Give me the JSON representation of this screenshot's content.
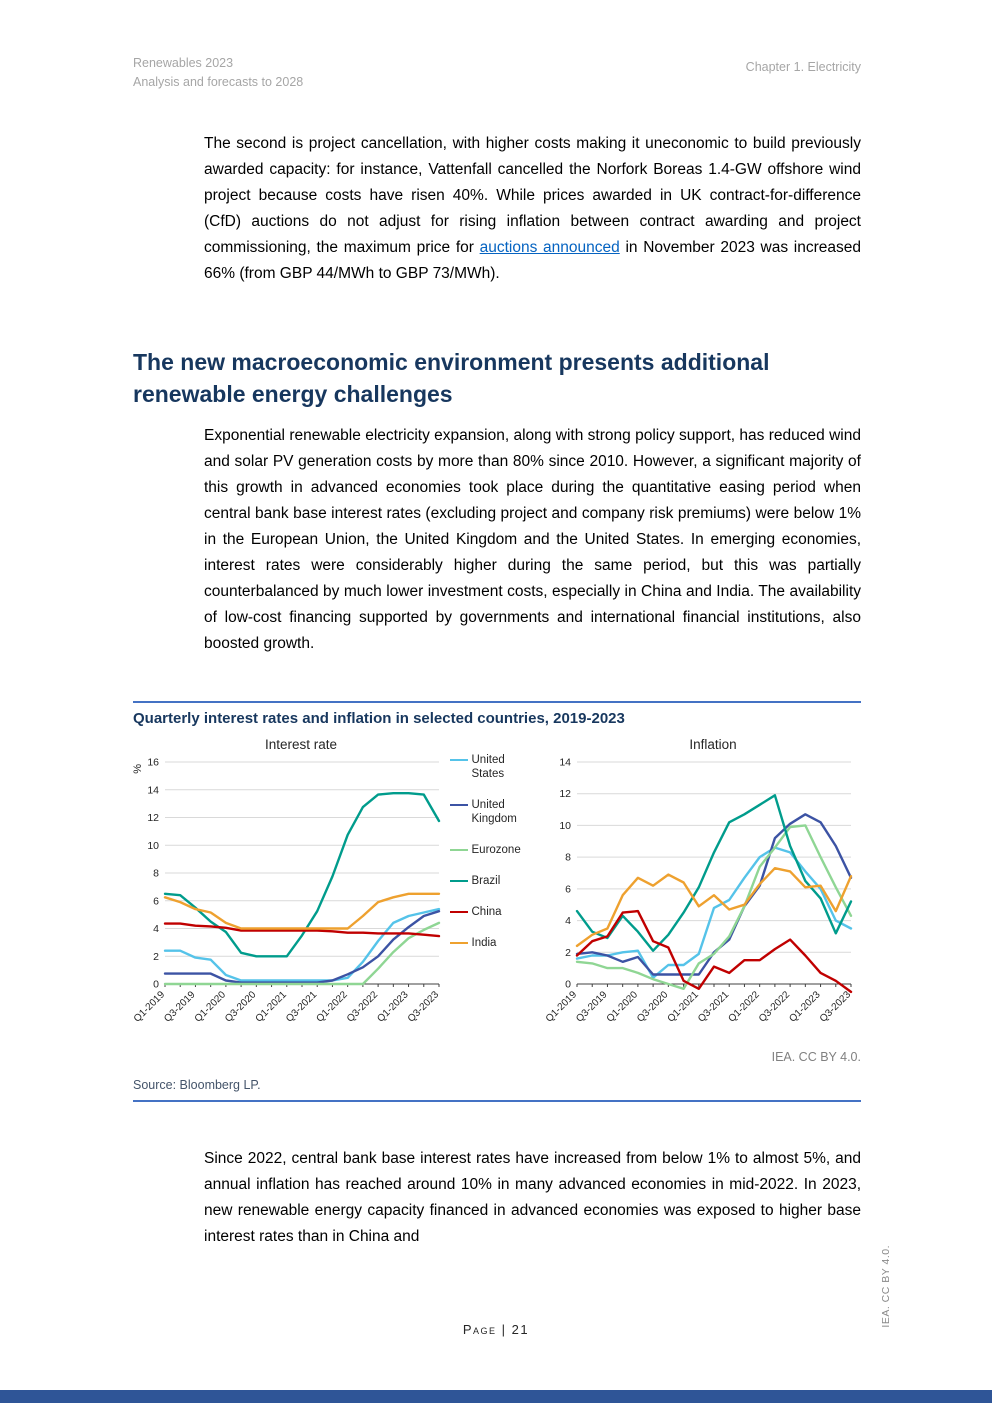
{
  "header": {
    "left_line1": "Renewables 2023",
    "left_line2": "Analysis and forecasts to 2028",
    "right": "Chapter 1. Electricity"
  },
  "heading": "The new macroeconomic environment presents additional renewable energy challenges",
  "paragraphs": {
    "p1_pre": "The second is project cancellation, with higher costs making it uneconomic to build previously awarded capacity: for instance, Vattenfall cancelled the Norfork Boreas 1.4-GW offshore wind project because costs have risen 40%. While prices awarded in UK contract-for-difference (CfD) auctions do not adjust for rising inflation between contract awarding and project commissioning, the maximum price for ",
    "p1_link": "auctions announced",
    "p1_post": " in November 2023 was increased 66% (from GBP 44/MWh to GBP 73/MWh).",
    "p2": "Exponential renewable electricity expansion, along with strong policy support, has reduced wind and solar PV generation costs by more than 80% since 2010. However, a significant majority of this growth in advanced economies took place during the quantitative easing period when central bank base interest rates (excluding project and company risk premiums) were below 1% in the European Union, the United Kingdom and the United States. In emerging economies, interest rates were considerably higher during the same period, but this was partially counterbalanced by much lower investment costs, especially in China and India. The availability of low-cost financing supported by governments and international financial institutions, also boosted growth.",
    "p3": "Since 2022, central bank base interest rates have increased from below 1% to almost 5%, and annual inflation has reached around 10% in many advanced economies in mid-2022. In 2023, new renewable energy capacity financed in advanced economies was exposed to higher base interest rates than in China and"
  },
  "figure": {
    "title": "Quarterly interest rates and inflation in selected countries, 2019-2023",
    "attribution": "IEA. CC BY 4.0.",
    "source": "Source: Bloomberg LP."
  },
  "footer": {
    "page_label": "Page | 21",
    "side_note": "IEA. CC BY 4.0."
  },
  "colors": {
    "heading_navy": "#17375E",
    "rule_blue": "#4472C4",
    "bottom_bar_blue": "#2F5597",
    "link_blue": "#0563C1",
    "header_gray": "#A6A6A6"
  },
  "chart_data": [
    {
      "type": "line",
      "title": "Interest rate",
      "ylabel": "%",
      "ylim": [
        0,
        16
      ],
      "ytick_step": 2,
      "grid": true,
      "legend_position": "right-of-chart",
      "x": [
        "Q1-2019",
        "Q2-2019",
        "Q3-2019",
        "Q4-2019",
        "Q1-2020",
        "Q2-2020",
        "Q3-2020",
        "Q4-2020",
        "Q1-2021",
        "Q2-2021",
        "Q3-2021",
        "Q4-2021",
        "Q1-2022",
        "Q2-2022",
        "Q3-2022",
        "Q4-2022",
        "Q1-2023",
        "Q2-2023",
        "Q3-2023"
      ],
      "xtick_labels": [
        "Q1-2019",
        "Q3-2019",
        "Q1-2020",
        "Q3-2020",
        "Q1-2021",
        "Q3-2021",
        "Q1-2022",
        "Q3-2022",
        "Q1-2023",
        "Q3-2023"
      ],
      "series": [
        {
          "name": "United States",
          "color": "#55C3E9",
          "values": [
            2.4,
            2.4,
            1.9,
            1.75,
            0.65,
            0.25,
            0.25,
            0.25,
            0.25,
            0.25,
            0.25,
            0.25,
            0.45,
            1.6,
            3.1,
            4.4,
            4.9,
            5.15,
            5.4
          ]
        },
        {
          "name": "United Kingdom",
          "color": "#3C53A4",
          "values": [
            0.75,
            0.75,
            0.75,
            0.75,
            0.25,
            0.1,
            0.1,
            0.1,
            0.1,
            0.1,
            0.1,
            0.25,
            0.7,
            1.2,
            2.0,
            3.2,
            4.1,
            4.9,
            5.25
          ]
        },
        {
          "name": "Eurozone",
          "color": "#8FD694",
          "values": [
            0,
            0,
            0,
            0,
            0,
            0,
            0,
            0,
            0,
            0,
            0,
            0,
            0,
            0,
            1.1,
            2.3,
            3.3,
            3.9,
            4.4
          ]
        },
        {
          "name": "Brazil",
          "color": "#009C8C",
          "values": [
            6.5,
            6.4,
            5.5,
            4.5,
            3.75,
            2.25,
            2.0,
            2.0,
            2.0,
            3.5,
            5.25,
            7.75,
            10.75,
            12.75,
            13.65,
            13.75,
            13.75,
            13.65,
            11.75
          ]
        },
        {
          "name": "China",
          "color": "#C00000",
          "values": [
            4.35,
            4.35,
            4.2,
            4.15,
            4.05,
            3.85,
            3.85,
            3.85,
            3.85,
            3.85,
            3.85,
            3.8,
            3.7,
            3.7,
            3.65,
            3.65,
            3.65,
            3.55,
            3.45
          ]
        },
        {
          "name": "India",
          "color": "#EEA12F",
          "values": [
            6.25,
            5.9,
            5.4,
            5.15,
            4.4,
            4.0,
            4.0,
            4.0,
            4.0,
            4.0,
            4.0,
            4.0,
            4.0,
            4.9,
            5.9,
            6.25,
            6.5,
            6.5,
            6.5
          ]
        }
      ]
    },
    {
      "type": "line",
      "title": "Inflation",
      "ylabel": "",
      "ylim": [
        0,
        14
      ],
      "ytick_step": 2,
      "grid": true,
      "x": [
        "Q1-2019",
        "Q2-2019",
        "Q3-2019",
        "Q4-2019",
        "Q1-2020",
        "Q2-2020",
        "Q3-2020",
        "Q4-2020",
        "Q1-2021",
        "Q2-2021",
        "Q3-2021",
        "Q4-2021",
        "Q1-2022",
        "Q2-2022",
        "Q3-2022",
        "Q4-2022",
        "Q1-2023",
        "Q2-2023",
        "Q3-2023"
      ],
      "xtick_labels": [
        "Q1-2019",
        "Q3-2019",
        "Q1-2020",
        "Q3-2020",
        "Q1-2021",
        "Q3-2021",
        "Q1-2022",
        "Q3-2022",
        "Q1-2023",
        "Q3-2023"
      ],
      "series": [
        {
          "name": "United States",
          "color": "#55C3E9",
          "values": [
            1.6,
            1.8,
            1.8,
            2.0,
            2.1,
            0.4,
            1.2,
            1.2,
            1.9,
            4.8,
            5.3,
            6.7,
            8.0,
            8.6,
            8.3,
            7.1,
            6.0,
            4.0,
            3.5
          ]
        },
        {
          "name": "United Kingdom",
          "color": "#3C53A4",
          "values": [
            1.9,
            2.0,
            1.8,
            1.4,
            1.7,
            0.6,
            0.6,
            0.6,
            0.6,
            2.0,
            2.8,
            4.9,
            6.2,
            9.2,
            10.1,
            10.7,
            10.2,
            8.7,
            6.7
          ]
        },
        {
          "name": "Eurozone",
          "color": "#8FD694",
          "values": [
            1.4,
            1.3,
            1.0,
            1.0,
            0.7,
            0.3,
            0.0,
            -0.3,
            1.3,
            1.9,
            3.0,
            4.9,
            7.4,
            8.6,
            9.9,
            10.0,
            8.0,
            6.1,
            4.3
          ]
        },
        {
          "name": "Brazil",
          "color": "#009C8C",
          "values": [
            4.6,
            3.3,
            2.9,
            4.3,
            3.3,
            2.1,
            3.1,
            4.5,
            6.1,
            8.3,
            10.2,
            10.7,
            11.3,
            11.9,
            8.7,
            6.5,
            5.4,
            3.2,
            5.2
          ]
        },
        {
          "name": "China",
          "color": "#C00000",
          "values": [
            1.8,
            2.7,
            3.0,
            4.5,
            4.6,
            2.7,
            2.3,
            0.2,
            -0.3,
            1.1,
            0.7,
            1.5,
            1.5,
            2.2,
            2.8,
            1.8,
            0.7,
            0.2,
            -0.5
          ]
        },
        {
          "name": "India",
          "color": "#EEA12F",
          "values": [
            2.4,
            3.1,
            3.5,
            5.6,
            6.7,
            6.2,
            6.9,
            6.4,
            4.9,
            5.6,
            4.7,
            5.0,
            6.3,
            7.3,
            7.1,
            6.1,
            6.2,
            4.6,
            6.8
          ]
        }
      ]
    }
  ]
}
